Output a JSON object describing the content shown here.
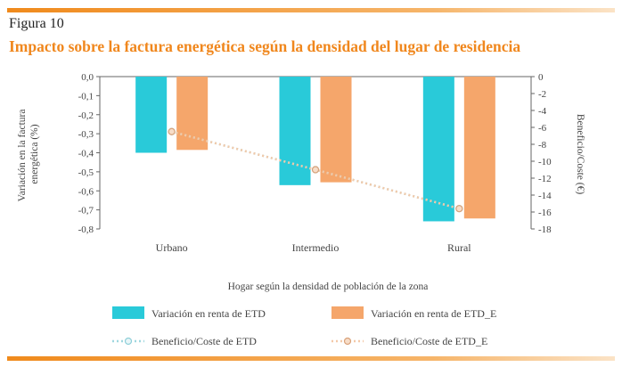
{
  "figure": {
    "label": "Figura 10",
    "title": "Impacto sobre la factura energética según la densidad del lugar de residencia"
  },
  "colors": {
    "accent": "#f08a1c",
    "bar_etd": "#29cad9",
    "bar_etd_e": "#f5a66b",
    "line_etd": "#9fd7df",
    "line_etd_e": "#f3c9a8"
  },
  "chart_data": {
    "type": "bar",
    "categories": [
      "Urbano",
      "Intermedio",
      "Rural"
    ],
    "xlabel": "Hogar según la densidad de población de la zona",
    "ylabel_left": "Variación en la factura energética (%)",
    "ylabel_right": "Beneficio/Coste (€)",
    "ylim_left": [
      -0.8,
      0.0
    ],
    "ylim_right": [
      -18,
      0
    ],
    "yticks_left": [
      "0,0",
      "-0,1",
      "-0,2",
      "-0,3",
      "-0,4",
      "-0,5",
      "-0,6",
      "-0,7",
      "-0,8"
    ],
    "yticks_right": [
      "0",
      "-2",
      "-4",
      "-6",
      "-8",
      "-10",
      "-12",
      "-14",
      "-16",
      "-18"
    ],
    "series": [
      {
        "name": "Variación en renta de ETD",
        "kind": "bar",
        "axis": "left",
        "values": [
          -0.4,
          -0.57,
          -0.76
        ]
      },
      {
        "name": "Variación en renta de ETD_E",
        "kind": "bar",
        "axis": "left",
        "values": [
          -0.385,
          -0.555,
          -0.745
        ]
      },
      {
        "name": "Beneficio/Coste de ETD",
        "kind": "line",
        "axis": "right",
        "values": [
          -6.5,
          -11.0,
          -15.6
        ]
      },
      {
        "name": "Beneficio/Coste de ETD_E",
        "kind": "line",
        "axis": "right",
        "values": [
          -6.5,
          -11.0,
          -15.6
        ]
      }
    ],
    "grid": false,
    "legend_position": "bottom"
  }
}
